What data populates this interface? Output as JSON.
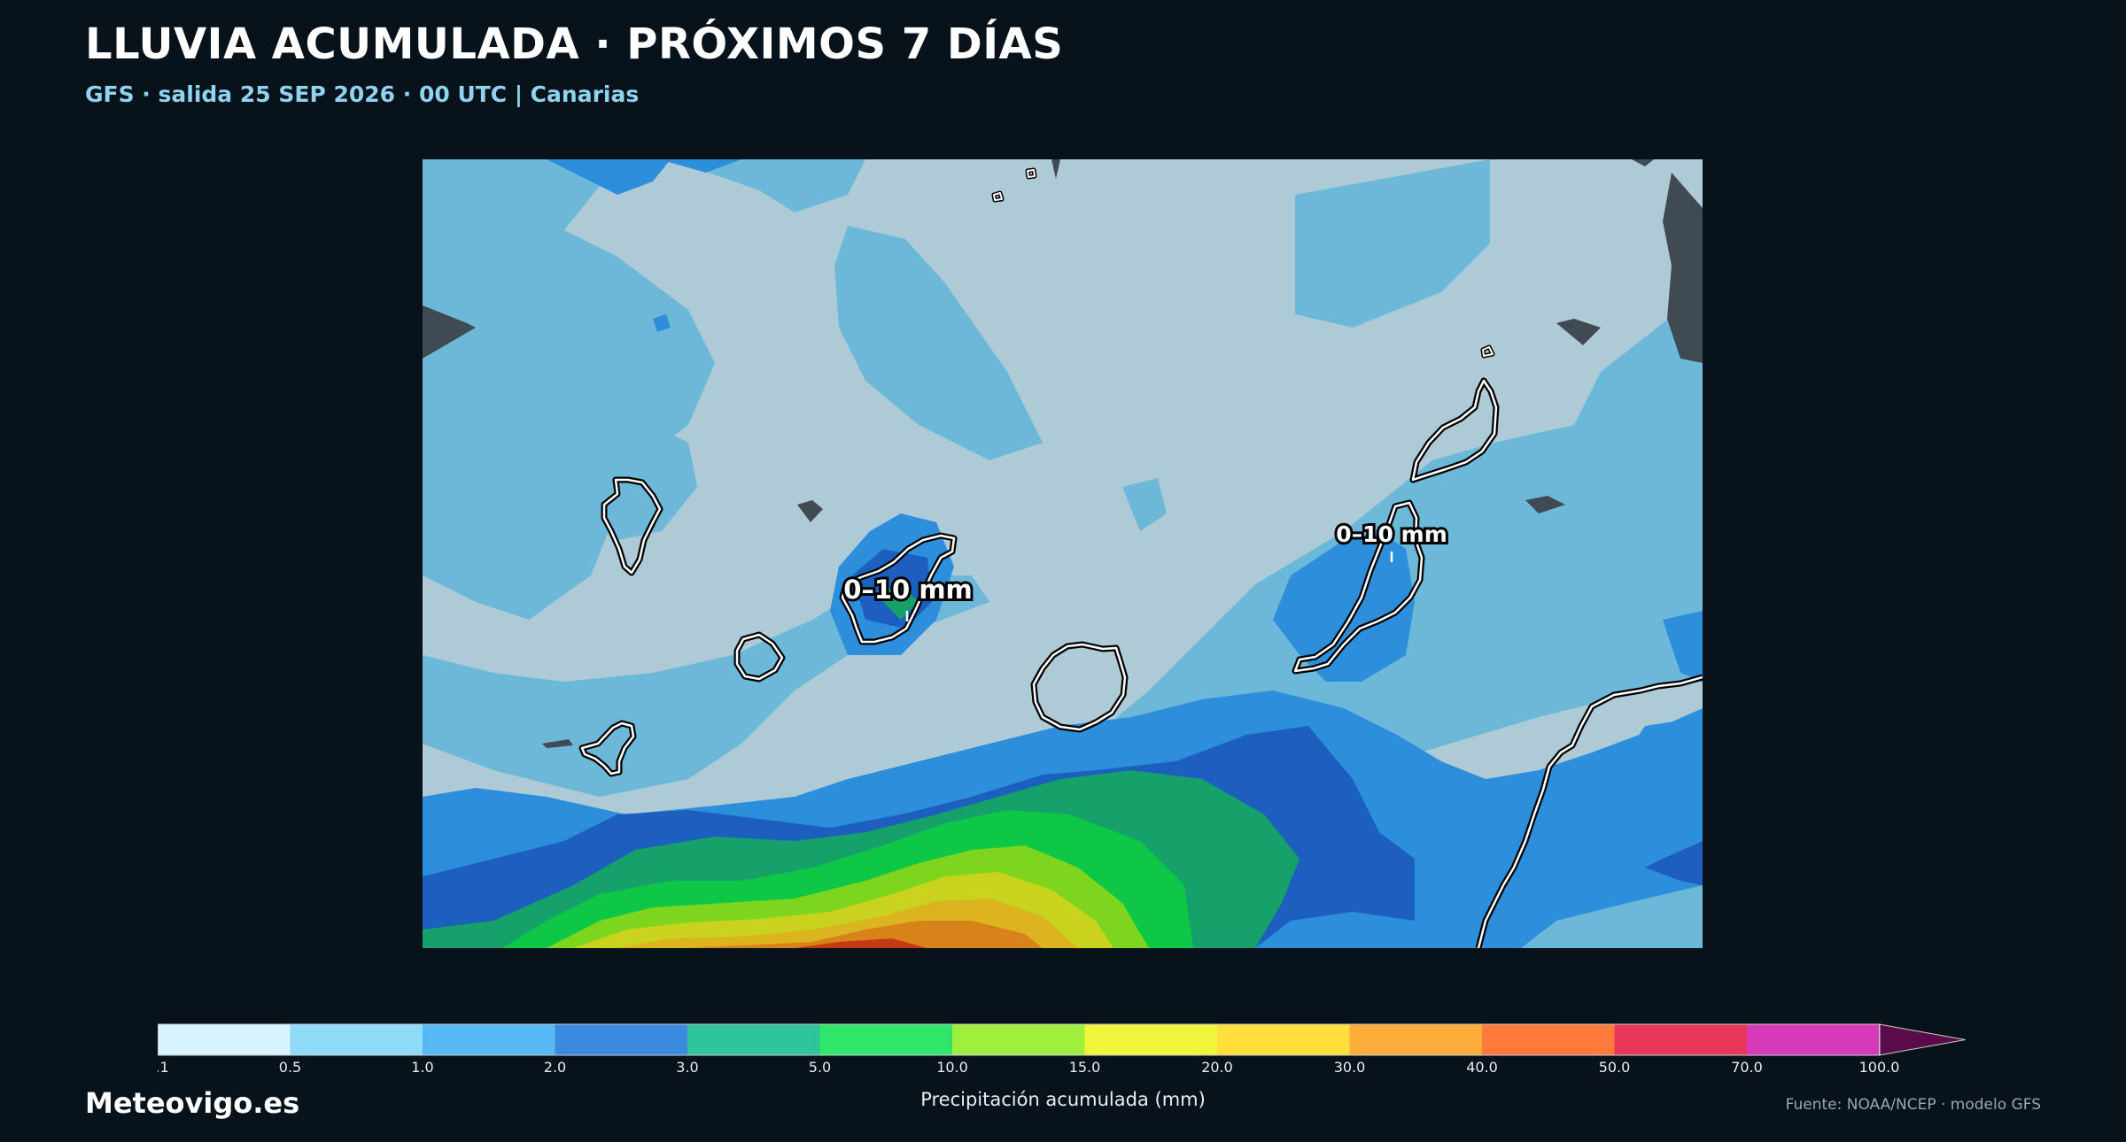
{
  "header": {
    "title": "LLUVIA ACUMULADA · PRÓXIMOS 7 DÍAS",
    "subtitle": "GFS · salida 25 SEP 2026 · 00 UTC  |  Canarias"
  },
  "map": {
    "region": "Canarias",
    "annotations": [
      {
        "id": "tenerife",
        "text": "0–10 mm"
      },
      {
        "id": "fuerteventura",
        "text": "0–10 mm"
      }
    ]
  },
  "colorbar": {
    "title": "Precipitación acumulada (mm)",
    "ticks": [
      "0.1",
      "0.5",
      "1.0",
      "2.0",
      "3.0",
      "5.0",
      "10.0",
      "15.0",
      "20.0",
      "30.0",
      "40.0",
      "50.0",
      "70.0",
      "100.0"
    ],
    "colors": [
      "#d6f3ff",
      "#8fdaf7",
      "#56b9f5",
      "#3a8ae0",
      "#2fc49a",
      "#2fe66a",
      "#9ef03c",
      "#eef53a",
      "#ffdf3c",
      "#ffad3a",
      "#ff7a3a",
      "#e8375a",
      "#d63ab8"
    ],
    "extend_color": "#5a0b4a"
  },
  "footer": {
    "brand": "Meteovigo.es",
    "source": "Fuente: NOAA/NCEP · modelo GFS"
  }
}
